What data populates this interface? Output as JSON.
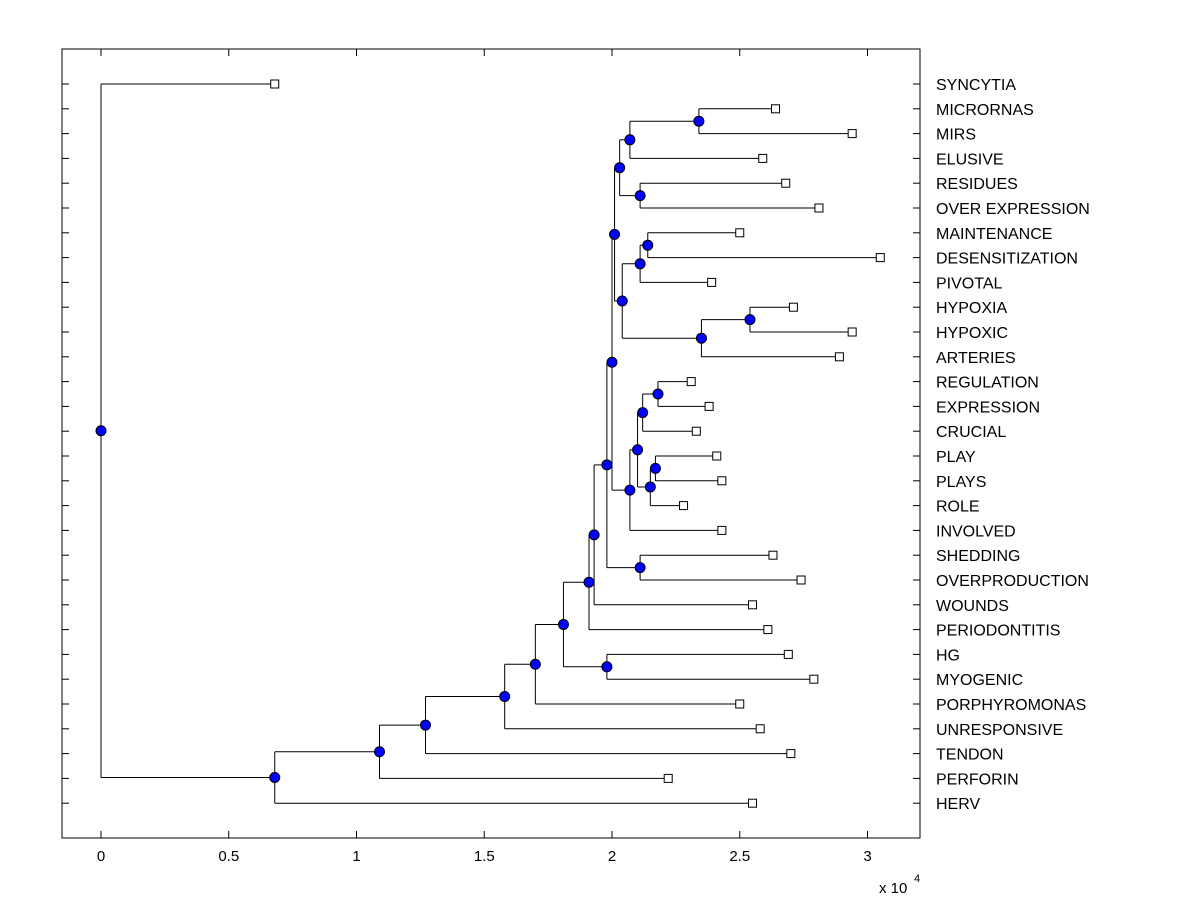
{
  "chart_data": {
    "type": "dendrogram",
    "title": "",
    "xlabel": "",
    "ylabel": "",
    "x_multiplier_label": {
      "base": "x 10",
      "exponent": "4"
    },
    "xlim": [
      -0.15,
      3.2
    ],
    "xticks": [
      {
        "value": 0,
        "label": "0"
      },
      {
        "value": 0.5,
        "label": "0.5"
      },
      {
        "value": 1,
        "label": "1"
      },
      {
        "value": 1.5,
        "label": "1.5"
      },
      {
        "value": 2,
        "label": "2"
      },
      {
        "value": 2.5,
        "label": "2.5"
      },
      {
        "value": 3,
        "label": "3"
      }
    ],
    "grid": false,
    "leaves": [
      {
        "label": "SYNCYTIA",
        "x": 0.68
      },
      {
        "label": "MICRORNAS",
        "x": 2.64
      },
      {
        "label": "MIRS",
        "x": 2.94
      },
      {
        "label": "ELUSIVE",
        "x": 2.59
      },
      {
        "label": "RESIDUES",
        "x": 2.68
      },
      {
        "label": "OVER EXPRESSION",
        "x": 2.81
      },
      {
        "label": "MAINTENANCE",
        "x": 2.5
      },
      {
        "label": "DESENSITIZATION",
        "x": 3.05
      },
      {
        "label": "PIVOTAL",
        "x": 2.39
      },
      {
        "label": "HYPOXIA",
        "x": 2.71
      },
      {
        "label": "HYPOXIC",
        "x": 2.94
      },
      {
        "label": "ARTERIES",
        "x": 2.89
      },
      {
        "label": "REGULATION",
        "x": 2.31
      },
      {
        "label": "EXPRESSION",
        "x": 2.38
      },
      {
        "label": "CRUCIAL",
        "x": 2.33
      },
      {
        "label": "PLAY",
        "x": 2.41
      },
      {
        "label": "PLAYS",
        "x": 2.43
      },
      {
        "label": "ROLE",
        "x": 2.28
      },
      {
        "label": "INVOLVED",
        "x": 2.43
      },
      {
        "label": "SHEDDING",
        "x": 2.63
      },
      {
        "label": "OVERPRODUCTION",
        "x": 2.74
      },
      {
        "label": "WOUNDS",
        "x": 2.55
      },
      {
        "label": "PERIODONTITIS",
        "x": 2.61
      },
      {
        "label": "HG",
        "x": 2.69
      },
      {
        "label": "MYOGENIC",
        "x": 2.79
      },
      {
        "label": "PORPHYROMONAS",
        "x": 2.5
      },
      {
        "label": "UNRESPONSIVE",
        "x": 2.58
      },
      {
        "label": "TENDON",
        "x": 2.7
      },
      {
        "label": "PERFORIN",
        "x": 2.22
      },
      {
        "label": "HERV",
        "x": 2.55
      }
    ],
    "merges": [
      {
        "id": "n1",
        "x": 2.34,
        "children": [
          "MICRORNAS",
          "MIRS"
        ]
      },
      {
        "id": "n2",
        "x": 2.07,
        "children": [
          "n1",
          "ELUSIVE"
        ]
      },
      {
        "id": "n3",
        "x": 2.11,
        "children": [
          "RESIDUES",
          "OVER EXPRESSION"
        ]
      },
      {
        "id": "n4",
        "x": 2.03,
        "children": [
          "n2",
          "n3"
        ]
      },
      {
        "id": "n5",
        "x": 2.14,
        "children": [
          "MAINTENANCE",
          "DESENSITIZATION"
        ]
      },
      {
        "id": "n6",
        "x": 2.11,
        "children": [
          "n5",
          "PIVOTAL"
        ]
      },
      {
        "id": "n7",
        "x": 2.54,
        "children": [
          "HYPOXIA",
          "HYPOXIC"
        ]
      },
      {
        "id": "n8",
        "x": 2.35,
        "children": [
          "n7",
          "ARTERIES"
        ]
      },
      {
        "id": "n9",
        "x": 2.04,
        "children": [
          "n6",
          "n8"
        ]
      },
      {
        "id": "n10",
        "x": 2.01,
        "children": [
          "n4",
          "n9"
        ]
      },
      {
        "id": "n11",
        "x": 2.18,
        "children": [
          "REGULATION",
          "EXPRESSION"
        ]
      },
      {
        "id": "n12",
        "x": 2.12,
        "children": [
          "n11",
          "CRUCIAL"
        ]
      },
      {
        "id": "n13",
        "x": 2.17,
        "children": [
          "PLAY",
          "PLAYS"
        ]
      },
      {
        "id": "n14",
        "x": 2.15,
        "children": [
          "n13",
          "ROLE"
        ]
      },
      {
        "id": "n15",
        "x": 2.1,
        "children": [
          "n12",
          "n14"
        ]
      },
      {
        "id": "n16",
        "x": 2.07,
        "children": [
          "n15",
          "INVOLVED"
        ]
      },
      {
        "id": "n17",
        "x": 2.0,
        "children": [
          "n10",
          "n16"
        ]
      },
      {
        "id": "n18",
        "x": 2.11,
        "children": [
          "SHEDDING",
          "OVERPRODUCTION"
        ]
      },
      {
        "id": "n19",
        "x": 1.98,
        "children": [
          "n17",
          "n18"
        ]
      },
      {
        "id": "n20",
        "x": 1.93,
        "children": [
          "n19",
          "WOUNDS"
        ]
      },
      {
        "id": "n21",
        "x": 1.91,
        "children": [
          "n20",
          "PERIODONTITIS"
        ]
      },
      {
        "id": "n22",
        "x": 1.98,
        "children": [
          "HG",
          "MYOGENIC"
        ]
      },
      {
        "id": "n23",
        "x": 1.81,
        "children": [
          "n21",
          "n22"
        ]
      },
      {
        "id": "n24",
        "x": 1.7,
        "children": [
          "n23",
          "PORPHYROMONAS"
        ]
      },
      {
        "id": "n25",
        "x": 1.58,
        "children": [
          "n24",
          "UNRESPONSIVE"
        ]
      },
      {
        "id": "n26",
        "x": 1.27,
        "children": [
          "n25",
          "TENDON"
        ]
      },
      {
        "id": "n27",
        "x": 1.09,
        "children": [
          "n26",
          "PERFORIN"
        ]
      },
      {
        "id": "n28",
        "x": 0.68,
        "children": [
          "n27",
          "HERV"
        ]
      },
      {
        "id": "n29",
        "x": 0.0,
        "children": [
          "SYNCYTIA",
          "n28"
        ]
      }
    ],
    "colors": {
      "node_fill": "#0000ff",
      "line": "#000000",
      "leaf_marker_fill": "#ffffff"
    }
  }
}
